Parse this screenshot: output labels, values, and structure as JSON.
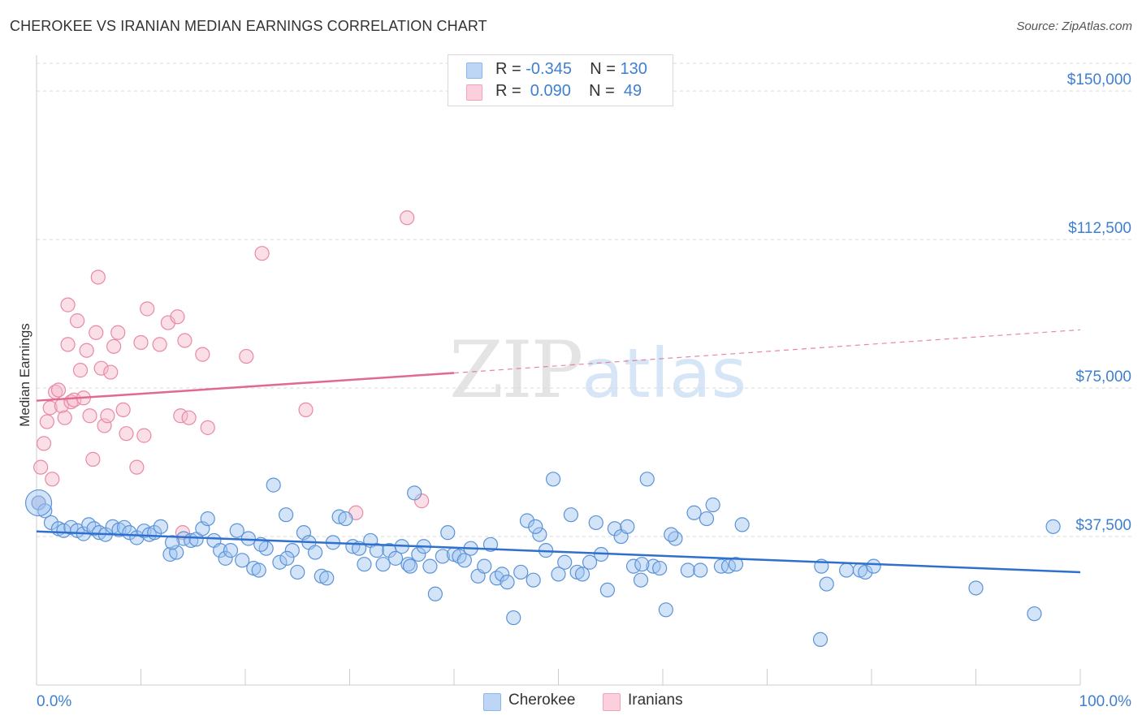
{
  "header": {
    "title": "CHEROKEE VS IRANIAN MEDIAN EARNINGS CORRELATION CHART",
    "source": "Source: ZipAtlas.com"
  },
  "watermark": {
    "zip": "ZIP",
    "atlas": "atlas"
  },
  "legend_top": {
    "rows": [
      {
        "r_label": "R = ",
        "r_value": "-0.345",
        "n_label": "N = ",
        "n_value": "130",
        "color": "#9ec4f2"
      },
      {
        "r_label": "R = ",
        "r_value": " 0.090",
        "n_label": "N = ",
        "n_value": " 49",
        "color": "#f7b7c9"
      }
    ]
  },
  "colors": {
    "cherokee_fill": "#9ec4f2",
    "cherokee_stroke": "#5b93d6",
    "cherokee_line": "#2f6fce",
    "iranians_fill": "#f7b7c9",
    "iranians_stroke": "#e889a6",
    "iranians_line": "#e2688f",
    "grid": "#d9d9d9",
    "tick_text": "#3f7fcf"
  },
  "chart_data": {
    "type": "scatter",
    "title": "CHEROKEE VS IRANIAN MEDIAN EARNINGS CORRELATION CHART",
    "xlabel": "",
    "ylabel": "Median Earnings",
    "xlim": [
      0,
      100
    ],
    "ylim": [
      0,
      157000
    ],
    "x_tick_labels": [
      "0.0%",
      "100.0%"
    ],
    "y_ticks": [
      37500,
      75000,
      112500,
      150000
    ],
    "y_tick_labels": [
      "$37,500",
      "$75,000",
      "$112,500",
      "$150,000"
    ],
    "grid": true,
    "legend_position": "bottom-center",
    "series": [
      {
        "name": "Cherokee",
        "r": -0.345,
        "n": 130,
        "trend": {
          "x": [
            0,
            100
          ],
          "y": [
            38800,
            28500
          ],
          "dashed_from": null
        },
        "points": [
          [
            0.2,
            46000
          ],
          [
            0.8,
            44000
          ],
          [
            1.4,
            41000
          ],
          [
            2.1,
            39500
          ],
          [
            2.6,
            39000
          ],
          [
            3.3,
            39800
          ],
          [
            3.9,
            39000
          ],
          [
            4.5,
            38200
          ],
          [
            5.0,
            40500
          ],
          [
            5.5,
            39500
          ],
          [
            6.0,
            38500
          ],
          [
            6.6,
            38000
          ],
          [
            7.3,
            40000
          ],
          [
            7.9,
            39200
          ],
          [
            8.4,
            39800
          ],
          [
            8.9,
            38500
          ],
          [
            9.6,
            37200
          ],
          [
            10.3,
            38900
          ],
          [
            10.8,
            38000
          ],
          [
            11.3,
            38500
          ],
          [
            11.9,
            40000
          ],
          [
            12.8,
            33000
          ],
          [
            13.4,
            33500
          ],
          [
            14.1,
            37000
          ],
          [
            14.8,
            36500
          ],
          [
            15.3,
            36800
          ],
          [
            15.9,
            39500
          ],
          [
            16.4,
            42000
          ],
          [
            17.0,
            36500
          ],
          [
            17.6,
            34000
          ],
          [
            18.1,
            32000
          ],
          [
            18.6,
            34000
          ],
          [
            19.2,
            39000
          ],
          [
            19.7,
            31500
          ],
          [
            20.3,
            37000
          ],
          [
            20.8,
            29500
          ],
          [
            21.3,
            29000
          ],
          [
            22.0,
            34500
          ],
          [
            22.7,
            50500
          ],
          [
            23.3,
            31000
          ],
          [
            23.9,
            43000
          ],
          [
            24.5,
            34000
          ],
          [
            25.0,
            28500
          ],
          [
            25.6,
            38500
          ],
          [
            26.1,
            36000
          ],
          [
            26.7,
            33500
          ],
          [
            27.3,
            27500
          ],
          [
            27.8,
            27000
          ],
          [
            28.4,
            36000
          ],
          [
            29.0,
            42500
          ],
          [
            29.6,
            42000
          ],
          [
            30.3,
            35000
          ],
          [
            30.9,
            34500
          ],
          [
            31.4,
            30500
          ],
          [
            32.0,
            36500
          ],
          [
            32.6,
            34000
          ],
          [
            33.2,
            30500
          ],
          [
            33.8,
            34000
          ],
          [
            34.4,
            32000
          ],
          [
            35.0,
            35000
          ],
          [
            35.6,
            30500
          ],
          [
            36.2,
            48500
          ],
          [
            36.6,
            33000
          ],
          [
            37.1,
            35000
          ],
          [
            37.7,
            30000
          ],
          [
            38.2,
            23000
          ],
          [
            38.9,
            32500
          ],
          [
            39.4,
            38500
          ],
          [
            40.0,
            33000
          ],
          [
            40.5,
            32500
          ],
          [
            41.0,
            31500
          ],
          [
            41.6,
            34500
          ],
          [
            42.3,
            27500
          ],
          [
            42.9,
            30000
          ],
          [
            43.5,
            35500
          ],
          [
            44.1,
            27000
          ],
          [
            44.6,
            28000
          ],
          [
            45.1,
            26000
          ],
          [
            45.7,
            17000
          ],
          [
            46.4,
            28500
          ],
          [
            47.0,
            41500
          ],
          [
            47.6,
            26500
          ],
          [
            48.2,
            38000
          ],
          [
            48.8,
            34000
          ],
          [
            49.5,
            52000
          ],
          [
            50.0,
            28000
          ],
          [
            50.6,
            31000
          ],
          [
            51.2,
            43000
          ],
          [
            51.8,
            28500
          ],
          [
            52.3,
            28000
          ],
          [
            53.0,
            31000
          ],
          [
            53.6,
            41000
          ],
          [
            54.1,
            33000
          ],
          [
            54.7,
            24000
          ],
          [
            55.4,
            39500
          ],
          [
            56.0,
            37500
          ],
          [
            56.6,
            40000
          ],
          [
            57.2,
            30000
          ],
          [
            57.9,
            26500
          ],
          [
            58.5,
            52000
          ],
          [
            59.1,
            30000
          ],
          [
            59.7,
            29500
          ],
          [
            60.3,
            19000
          ],
          [
            61.2,
            37000
          ],
          [
            62.4,
            29000
          ],
          [
            63.0,
            43500
          ],
          [
            63.6,
            29000
          ],
          [
            64.2,
            42000
          ],
          [
            64.8,
            45500
          ],
          [
            65.6,
            30000
          ],
          [
            66.3,
            30000
          ],
          [
            67.0,
            30500
          ],
          [
            67.6,
            40500
          ],
          [
            75.2,
            30000
          ],
          [
            77.6,
            29000
          ],
          [
            75.7,
            25500
          ],
          [
            78.9,
            29000
          ],
          [
            79.4,
            28500
          ],
          [
            80.2,
            30000
          ],
          [
            75.1,
            11500
          ],
          [
            90.0,
            24500
          ],
          [
            95.6,
            18000
          ],
          [
            97.4,
            40000
          ],
          [
            13.0,
            36000
          ],
          [
            21.5,
            35500
          ],
          [
            24.0,
            32000
          ],
          [
            35.8,
            30000
          ],
          [
            47.8,
            40000
          ],
          [
            58.0,
            30500
          ],
          [
            60.8,
            38000
          ]
        ]
      },
      {
        "name": "Iranians",
        "r": 0.09,
        "n": 49,
        "trend": {
          "x": [
            0,
            40,
            100
          ],
          "y": [
            71800,
            78800,
            89700
          ],
          "dashed_from": 40
        },
        "points": [
          [
            0.2,
            46000
          ],
          [
            0.4,
            55000
          ],
          [
            0.7,
            61000
          ],
          [
            1.0,
            66500
          ],
          [
            1.3,
            70000
          ],
          [
            1.5,
            52000
          ],
          [
            1.8,
            74000
          ],
          [
            2.1,
            74500
          ],
          [
            2.4,
            70500
          ],
          [
            2.7,
            67500
          ],
          [
            3.0,
            86000
          ],
          [
            3.0,
            96000
          ],
          [
            3.3,
            71500
          ],
          [
            3.6,
            72000
          ],
          [
            3.9,
            92000
          ],
          [
            4.2,
            79500
          ],
          [
            4.5,
            72500
          ],
          [
            4.8,
            84500
          ],
          [
            5.1,
            68000
          ],
          [
            5.4,
            57000
          ],
          [
            5.7,
            89000
          ],
          [
            5.9,
            103000
          ],
          [
            6.2,
            80000
          ],
          [
            6.5,
            65500
          ],
          [
            6.8,
            68000
          ],
          [
            7.1,
            79000
          ],
          [
            7.4,
            85500
          ],
          [
            7.8,
            89000
          ],
          [
            8.3,
            69500
          ],
          [
            8.6,
            63500
          ],
          [
            9.6,
            55000
          ],
          [
            10.0,
            86500
          ],
          [
            10.3,
            63000
          ],
          [
            10.6,
            95000
          ],
          [
            11.8,
            86000
          ],
          [
            12.6,
            91500
          ],
          [
            13.5,
            93000
          ],
          [
            13.8,
            68000
          ],
          [
            14.2,
            87000
          ],
          [
            14.6,
            67500
          ],
          [
            15.9,
            83500
          ],
          [
            16.4,
            65000
          ],
          [
            20.1,
            83000
          ],
          [
            21.6,
            109000
          ],
          [
            25.8,
            69500
          ],
          [
            30.6,
            43500
          ],
          [
            35.5,
            118000
          ],
          [
            36.9,
            46500
          ],
          [
            14.0,
            38500
          ]
        ]
      }
    ]
  }
}
